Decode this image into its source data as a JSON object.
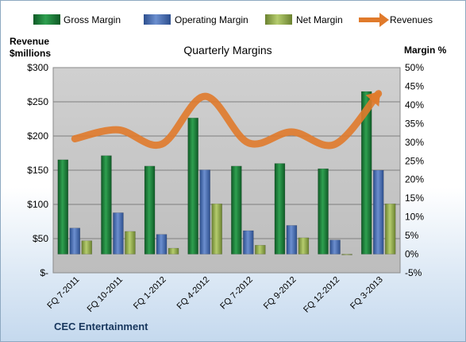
{
  "chart_data": {
    "type": "bar",
    "title": "Quarterly Margins",
    "categories": [
      "FQ 7-2011",
      "FQ 10-2011",
      "FQ 1-2012",
      "FQ 4-2012",
      "FQ 7-2012",
      "FQ 9-2012",
      "FQ 12-2012",
      "FQ 3-2013"
    ],
    "series": [
      {
        "name": "Gross Margin",
        "axis": "right",
        "values": [
          25.3,
          26.4,
          23.6,
          36.5,
          23.6,
          24.3,
          22.9,
          43.6
        ]
      },
      {
        "name": "Operating Margin",
        "axis": "right",
        "values": [
          7.0,
          11.1,
          5.3,
          22.6,
          6.3,
          7.7,
          3.8,
          22.5
        ]
      },
      {
        "name": "Net Margin",
        "axis": "right",
        "values": [
          3.6,
          6.1,
          1.6,
          13.5,
          2.4,
          4.4,
          -0.1,
          13.5
        ]
      },
      {
        "name": "Revenues",
        "axis": "left",
        "type": "line",
        "values": [
          196,
          209,
          188,
          258,
          190,
          206,
          188,
          262
        ]
      }
    ],
    "yleft": {
      "label": [
        "Revenue",
        "$millions"
      ],
      "ylim": [
        0,
        300
      ],
      "ticks": [
        0,
        50,
        100,
        150,
        200,
        250,
        300
      ],
      "tick_labels": [
        "$-",
        "$50",
        "$100",
        "$150",
        "$200",
        "$250",
        "$300"
      ]
    },
    "yright": {
      "label": "Margin %",
      "ylim": [
        -5,
        50
      ],
      "ticks": [
        -5,
        0,
        5,
        10,
        15,
        20,
        25,
        30,
        35,
        40,
        45,
        50
      ],
      "tick_labels": [
        "-5%",
        "0%",
        "5%",
        "10%",
        "15%",
        "20%",
        "25%",
        "30%",
        "35%",
        "40%",
        "45%",
        "50%"
      ]
    },
    "grid": true,
    "legend": "top",
    "source": "CEC Entertainment",
    "colors": {
      "gross": "#1e7a3a",
      "operating": "#4a6fb0",
      "net": "#8fa84a",
      "revenues": "#e07a2b",
      "plot_bg": "#c8c8c8"
    }
  }
}
